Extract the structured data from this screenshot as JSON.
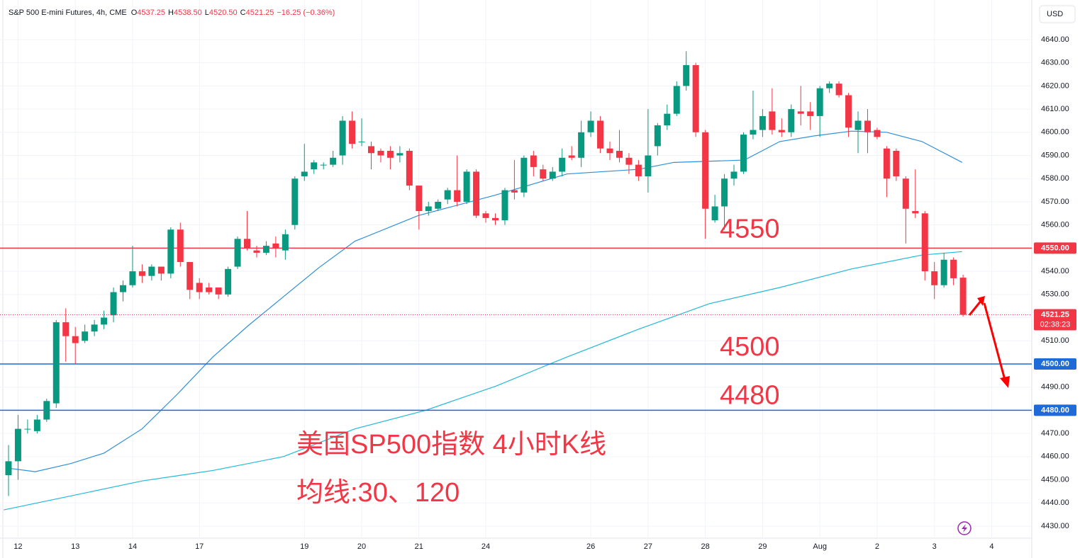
{
  "chart_data": {
    "type": "candlestick",
    "title": "S&P 500 E-mini Futures, 4h, CME",
    "ohlc_header": [
      {
        "label": "O",
        "text": "4537.25"
      },
      {
        "label": "H",
        "text": "4538.50"
      },
      {
        "label": "L",
        "text": "4520.50"
      },
      {
        "label": "C",
        "text": "4521.25"
      }
    ],
    "change": "−16.25 (−0.36%)",
    "currency": "USD",
    "up_color": "#089981",
    "down_color": "#f23645",
    "open": [
      4452,
      4458,
      4472,
      4471,
      4476,
      4483,
      4518,
      4512,
      4510,
      4514,
      4517,
      4521,
      4531,
      4534,
      4540,
      4538,
      4542,
      4539,
      4558,
      4544,
      4535,
      4533,
      4533,
      4530,
      4542,
      4554,
      4549,
      4548,
      4552,
      4549,
      4560,
      4581,
      4584,
      4586,
      4586,
      4590,
      4605,
      4596,
      4594,
      4592,
      4592,
      4590,
      4592,
      4577,
      4566,
      4567,
      4571,
      4575,
      4570,
      4583,
      4565,
      4563,
      4562,
      4575,
      4574,
      4590,
      4584,
      4580,
      4583,
      4590,
      4589,
      4600,
      4605,
      4593,
      4592,
      4589,
      4586,
      4581,
      4594,
      4603,
      4608,
      4620,
      4629,
      4600,
      4562,
      4568,
      4580,
      4583,
      4599,
      4601,
      4609,
      4601,
      4600,
      4609,
      4609,
      4607,
      4619,
      4621,
      4616,
      4601,
      4605,
      4601,
      4593,
      4592,
      4580,
      4566,
      4565,
      4540,
      4534,
      4545,
      4537.25
    ],
    "high": [
      4465,
      4478,
      4476,
      4478,
      4485,
      4519,
      4524,
      4516,
      4517,
      4519,
      4523,
      4533,
      4536,
      4551,
      4543,
      4543,
      4542,
      4559,
      4561,
      4544,
      4537,
      4535,
      4533,
      4542,
      4555,
      4566,
      4551,
      4553,
      4555,
      4558,
      4581,
      4595,
      4588,
      4587,
      4592,
      4607,
      4609,
      4606,
      4596,
      4593,
      4594,
      4594,
      4593,
      4577,
      4570,
      4571,
      4576,
      4590,
      4584,
      4584,
      4566,
      4565,
      4576,
      4588,
      4590,
      4592,
      4586,
      4585,
      4593,
      4594,
      4605,
      4609,
      4607,
      4596,
      4601,
      4591,
      4588,
      4610,
      4604,
      4612,
      4622,
      4635,
      4630,
      4601,
      4573,
      4582,
      4586,
      4600,
      4618,
      4610,
      4619,
      4606,
      4612,
      4620,
      4613,
      4620,
      4622,
      4622,
      4617,
      4609,
      4610,
      4602,
      4594,
      4593,
      4581,
      4584,
      4566,
      4544,
      4548,
      4546,
      4538.5
    ],
    "low": [
      4443,
      4450,
      4470,
      4470,
      4475,
      4481,
      4501,
      4500,
      4509,
      4512,
      4515,
      4518,
      4527,
      4533,
      4535,
      4536,
      4536,
      4537,
      4542,
      4528,
      4528,
      4530,
      4528,
      4529,
      4541,
      4549,
      4546,
      4547,
      4546,
      4545,
      4558,
      4579,
      4582,
      4584,
      4585,
      4586,
      4593,
      4594,
      4584,
      4587,
      4584,
      4587,
      4575,
      4558,
      4564,
      4566,
      4569,
      4568,
      4569,
      4563,
      4561,
      4560,
      4560,
      4571,
      4572,
      4581,
      4579,
      4579,
      4581,
      4588,
      4585,
      4598,
      4591,
      4588,
      4587,
      4582,
      4579,
      4574,
      4590,
      4601,
      4607,
      4618,
      4598,
      4554,
      4561,
      4558,
      4577,
      4582,
      4597,
      4598,
      4599,
      4598,
      4598,
      4603,
      4601,
      4598,
      4617,
      4615,
      4598,
      4591,
      4591,
      4597,
      4572,
      4579,
      4552,
      4563,
      4536,
      4528,
      4533,
      4534,
      4520.5
    ],
    "close": [
      4458,
      4472,
      4472,
      4476,
      4484,
      4518,
      4512,
      4509,
      4514,
      4517,
      4520,
      4531,
      4534,
      4540,
      4538,
      4542,
      4539,
      4558,
      4544,
      4532,
      4531,
      4531,
      4530,
      4541,
      4554,
      4550,
      4548,
      4551,
      4550,
      4556,
      4580,
      4583,
      4587,
      4586,
      4589,
      4605,
      4595,
      4596,
      4591,
      4590,
      4589,
      4591,
      4577,
      4566,
      4568,
      4570,
      4575,
      4570,
      4583,
      4564,
      4563,
      4562,
      4575,
      4574,
      4589,
      4585,
      4580,
      4583,
      4589,
      4589,
      4600,
      4605,
      4593,
      4591,
      4589,
      4586,
      4581,
      4590,
      4603,
      4608,
      4620,
      4629,
      4600,
      4567,
      4568,
      4580,
      4583,
      4599,
      4601,
      4607,
      4601,
      4600,
      4610,
      4608,
      4607,
      4619,
      4621,
      4616,
      4602,
      4605,
      4600,
      4598,
      4580,
      4581,
      4567,
      4565,
      4540,
      4534,
      4545,
      4537,
      4521.25
    ],
    "moving_averages": [
      {
        "color": "#2f8fd8",
        "x": [
          0,
          2.8,
          6.5,
          10,
          14,
          17.7,
          21.4,
          25.1,
          28.8,
          32.5,
          36.3,
          42.9,
          51.1,
          58.5,
          66,
          69.7,
          77.1,
          80.8,
          84.5,
          88.3,
          92,
          95.7,
          99.9
        ],
        "values": [
          4455,
          4453.5,
          4457,
          4461.5,
          4472,
          4487,
          4503,
          4516.5,
          4529,
          4541.5,
          4553,
          4564,
          4573,
          4582,
          4584,
          4587,
          4588,
          4596,
          4598.5,
          4600.5,
          4600,
          4596,
          4587
        ]
      },
      {
        "color": "#22b8d8",
        "x": [
          -0.5,
          6.5,
          14,
          21.4,
          28.8,
          36.3,
          43.7,
          51.1,
          58.5,
          66,
          73.4,
          80.8,
          88.3,
          95.7,
          99.9
        ],
        "values": [
          4437,
          4443,
          4449.5,
          4454,
          4460,
          4472,
          4480,
          4490.5,
          4503,
          4515,
          4526,
          4533,
          4541,
          4547,
          4548.5
        ]
      }
    ],
    "xlim": [
      -0.89,
      107.2
    ],
    "xticks": [
      {
        "value": 1,
        "label": "12"
      },
      {
        "value": 7,
        "label": "13"
      },
      {
        "value": 13,
        "label": "14"
      },
      {
        "value": 20,
        "label": "17"
      },
      {
        "value": 31,
        "label": "19"
      },
      {
        "value": 37,
        "label": "20"
      },
      {
        "value": 43,
        "label": "21"
      },
      {
        "value": 50,
        "label": "24"
      },
      {
        "value": 61,
        "label": "26"
      },
      {
        "value": 67,
        "label": "27"
      },
      {
        "value": 73,
        "label": "28"
      },
      {
        "value": 79,
        "label": "29"
      },
      {
        "value": 85,
        "label": "Aug"
      },
      {
        "value": 91,
        "label": "2"
      },
      {
        "value": 97,
        "label": "3"
      },
      {
        "value": 103,
        "label": "4"
      }
    ],
    "ylim": [
      4424.8,
      4657.1
    ],
    "yticks": [
      {
        "value": 4430,
        "label": "4430.00"
      },
      {
        "value": 4440,
        "label": "4440.00"
      },
      {
        "value": 4450,
        "label": "4450.00"
      },
      {
        "value": 4460,
        "label": "4460.00"
      },
      {
        "value": 4470,
        "label": "4470.00"
      },
      {
        "value": 4480,
        "label": "4480.00"
      },
      {
        "value": 4490,
        "label": "4490.00"
      },
      {
        "value": 4500,
        "label": "4500.00"
      },
      {
        "value": 4510,
        "label": "4510.00"
      },
      {
        "value": 4520,
        "label": "4520.00"
      },
      {
        "value": 4530,
        "label": "4530.00"
      },
      {
        "value": 4540,
        "label": "4540.00"
      },
      {
        "value": 4550,
        "label": "4550.00"
      },
      {
        "value": 4560,
        "label": "4560.00"
      },
      {
        "value": 4570,
        "label": "4570.00"
      },
      {
        "value": 4580,
        "label": "4580.00"
      },
      {
        "value": 4590,
        "label": "4590.00"
      },
      {
        "value": 4600,
        "label": "4600.00"
      },
      {
        "value": 4610,
        "label": "4610.00"
      },
      {
        "value": 4620,
        "label": "4620.00"
      },
      {
        "value": 4630,
        "label": "4630.00"
      },
      {
        "value": 4640,
        "label": "4640.00"
      }
    ],
    "grid": true,
    "hlines": [
      {
        "value": 4550,
        "label": "4550.00",
        "color": "#f23645"
      },
      {
        "value": 4500,
        "label": "4500.00",
        "color": "#1e6ad6"
      },
      {
        "value": 4480,
        "label": "4480.00",
        "color": "#1e6ad6"
      }
    ],
    "last_price": {
      "value": 4521.25,
      "label": "4521.25",
      "countdown": "02:38:23",
      "color": "#f23645"
    },
    "annotations": [
      {
        "text": "4550",
        "value": 4550
      },
      {
        "text": "4500",
        "value": 4500
      },
      {
        "text": "4480",
        "value": 4480
      }
    ],
    "caption": [
      "美国SP500指数 4小时K线",
      "均线:30、120"
    ]
  }
}
